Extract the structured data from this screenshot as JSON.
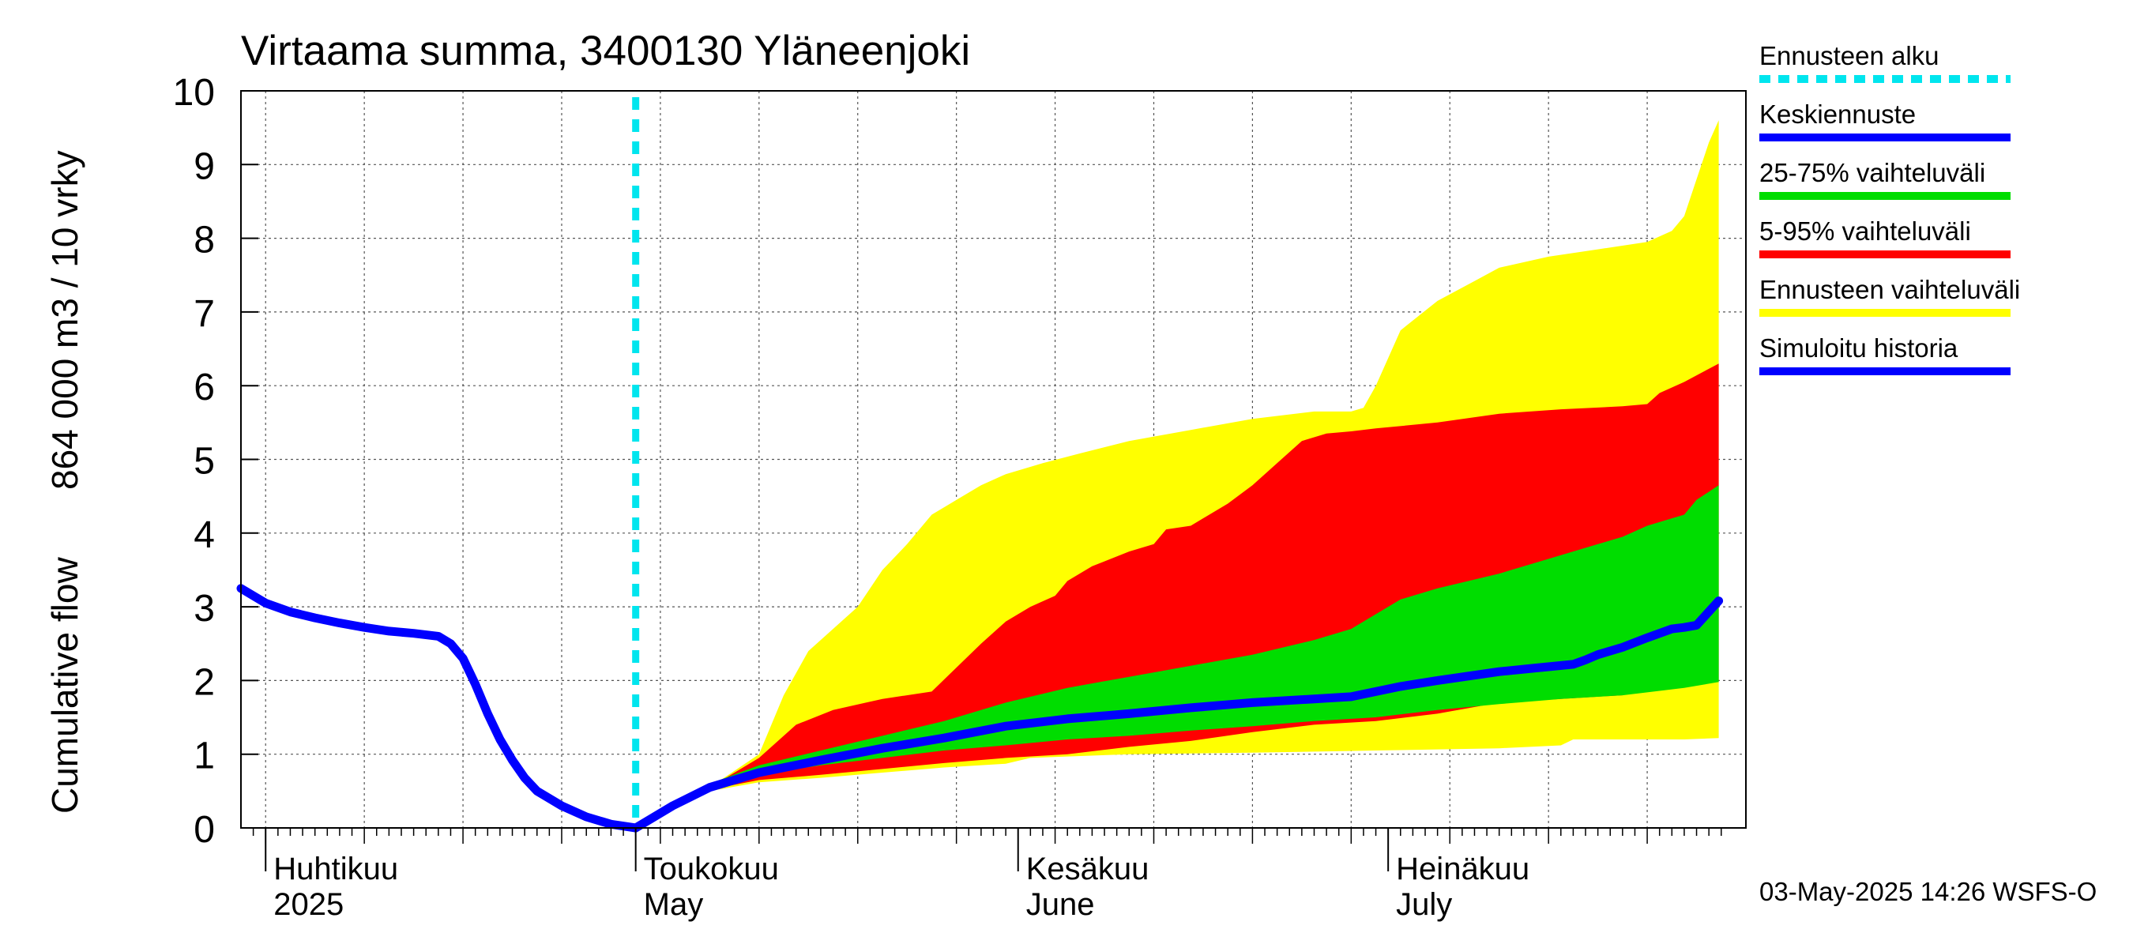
{
  "chart_data": {
    "type": "area",
    "title": "Virtaama summa, 3400130 Yläneenjoki",
    "ylabel_line1": "Cumulative flow",
    "ylabel_line2": "864 000 m3 / 10 vrky",
    "ylim": [
      0,
      10
    ],
    "yticks": [
      "0",
      "1",
      "2",
      "3",
      "4",
      "5",
      "6",
      "7",
      "8",
      "9",
      "10"
    ],
    "months": [
      {
        "fi": "Huhtikuu",
        "en": "2025",
        "day": 0
      },
      {
        "fi": "Toukokuu",
        "en": "May",
        "day": 30
      },
      {
        "fi": "Kesäkuu",
        "en": "June",
        "day": 61
      },
      {
        "fi": "Heinäkuu",
        "en": "July",
        "day": 91
      }
    ],
    "x_unit": "days since 2025-04-01",
    "xlim": [
      -2,
      120
    ],
    "grid": true,
    "forecast_start_day": 30,
    "legend": [
      {
        "label": "Ennusteen alku",
        "color": "#00e5ee",
        "style": "dashed"
      },
      {
        "label": "Keskiennuste",
        "color": "#0000ff",
        "style": "solid"
      },
      {
        "label": "25-75% vaihteluväli",
        "color": "#00dd00",
        "style": "solid"
      },
      {
        "label": "5-95% vaihteluväli",
        "color": "#ff0000",
        "style": "solid"
      },
      {
        "label": "Ennusteen vaihteluväli",
        "color": "#ffff00",
        "style": "solid"
      },
      {
        "label": "Simuloitu historia",
        "color": "#0000ff",
        "style": "solid"
      }
    ],
    "footer": "03-May-2025 14:26 WSFS-O",
    "series": [
      {
        "name": "Simuloitu historia",
        "color": "#0000ff",
        "x": [
          -2,
          0,
          2,
          4,
          6,
          8,
          10,
          12,
          14,
          15,
          16,
          17,
          18,
          19,
          20,
          21,
          22,
          24,
          26,
          28,
          30
        ],
        "y": [
          3.25,
          3.05,
          2.93,
          2.85,
          2.78,
          2.72,
          2.67,
          2.64,
          2.6,
          2.5,
          2.3,
          1.95,
          1.55,
          1.2,
          0.92,
          0.68,
          0.5,
          0.3,
          0.15,
          0.05,
          0.0
        ]
      },
      {
        "name": "Ennusteen vaihteluväli",
        "color": "#ffff00",
        "x_upper": [
          30,
          33,
          36,
          40,
          42,
          44,
          46,
          48,
          50,
          52,
          54,
          56,
          58,
          60,
          63,
          66,
          70,
          75,
          80,
          85,
          88,
          89,
          90,
          92,
          95,
          98,
          100,
          104,
          108,
          112,
          114,
          115,
          116,
          117,
          117.8
        ],
        "upper": [
          0.0,
          0.3,
          0.55,
          1.0,
          1.8,
          2.4,
          2.7,
          3.0,
          3.5,
          3.85,
          4.25,
          4.45,
          4.65,
          4.8,
          4.95,
          5.08,
          5.25,
          5.4,
          5.55,
          5.65,
          5.65,
          5.7,
          6.0,
          6.75,
          7.15,
          7.42,
          7.6,
          7.75,
          7.85,
          7.95,
          8.1,
          8.3,
          8.8,
          9.3,
          9.6
        ],
        "x_lower": [
          30,
          33,
          36,
          40,
          45,
          50,
          55,
          60,
          62,
          70,
          80,
          90,
          100,
          105,
          106,
          110,
          115,
          117.8
        ],
        "lower": [
          0.0,
          0.28,
          0.5,
          0.62,
          0.68,
          0.75,
          0.82,
          0.87,
          0.95,
          1.0,
          1.02,
          1.05,
          1.08,
          1.12,
          1.2,
          1.2,
          1.2,
          1.22
        ]
      },
      {
        "name": "5-95% vaihteluväli",
        "color": "#ff0000",
        "x_upper": [
          30,
          33,
          36,
          40,
          43,
          46,
          50,
          54,
          58,
          60,
          62,
          64,
          65,
          67,
          70,
          72,
          73,
          75,
          78,
          80,
          82,
          84,
          86,
          88,
          90,
          95,
          100,
          105,
          110,
          112,
          113,
          115,
          117.8
        ],
        "upper": [
          0.0,
          0.3,
          0.55,
          0.95,
          1.4,
          1.6,
          1.75,
          1.85,
          2.5,
          2.8,
          3.0,
          3.15,
          3.35,
          3.55,
          3.75,
          3.85,
          4.05,
          4.1,
          4.4,
          4.65,
          4.95,
          5.25,
          5.35,
          5.38,
          5.42,
          5.5,
          5.62,
          5.68,
          5.72,
          5.75,
          5.9,
          6.05,
          6.3
        ],
        "x_lower": [
          30,
          33,
          36,
          40,
          45,
          50,
          55,
          60,
          65,
          70,
          75,
          80,
          85,
          90,
          95,
          100,
          105,
          108,
          110,
          112,
          117.8
        ],
        "lower": [
          0.0,
          0.3,
          0.52,
          0.65,
          0.72,
          0.8,
          0.88,
          0.95,
          1.0,
          1.1,
          1.18,
          1.3,
          1.4,
          1.45,
          1.55,
          1.7,
          1.75,
          1.78,
          1.8,
          1.9,
          1.98
        ]
      },
      {
        "name": "25-75% vaihteluväli",
        "color": "#00dd00",
        "x_upper": [
          30,
          33,
          36,
          40,
          45,
          50,
          55,
          60,
          65,
          70,
          75,
          80,
          85,
          88,
          90,
          92,
          95,
          100,
          105,
          108,
          110,
          112,
          114,
          115,
          116,
          117.8
        ],
        "upper": [
          0.0,
          0.3,
          0.6,
          0.85,
          1.05,
          1.25,
          1.45,
          1.7,
          1.9,
          2.05,
          2.2,
          2.35,
          2.55,
          2.7,
          2.9,
          3.1,
          3.25,
          3.45,
          3.7,
          3.85,
          3.95,
          4.1,
          4.2,
          4.25,
          4.45,
          4.65
        ],
        "x_lower": [
          30,
          33,
          36,
          40,
          45,
          50,
          55,
          60,
          65,
          70,
          75,
          80,
          85,
          90,
          95,
          100,
          105,
          110,
          115,
          117.8
        ],
        "lower": [
          0.0,
          0.3,
          0.55,
          0.72,
          0.85,
          0.95,
          1.05,
          1.12,
          1.2,
          1.25,
          1.32,
          1.38,
          1.45,
          1.5,
          1.6,
          1.68,
          1.75,
          1.8,
          1.9,
          1.98
        ]
      },
      {
        "name": "Keskiennuste",
        "color": "#0000ff",
        "x": [
          30,
          33,
          36,
          40,
          45,
          50,
          55,
          60,
          65,
          70,
          75,
          80,
          85,
          88,
          90,
          92,
          95,
          100,
          103,
          106,
          107,
          108,
          110,
          112,
          114,
          115,
          116,
          117.8
        ],
        "y": [
          0.0,
          0.3,
          0.55,
          0.75,
          0.92,
          1.08,
          1.22,
          1.38,
          1.48,
          1.55,
          1.63,
          1.7,
          1.75,
          1.78,
          1.85,
          1.92,
          2.0,
          2.12,
          2.17,
          2.22,
          2.28,
          2.35,
          2.45,
          2.58,
          2.7,
          2.72,
          2.75,
          3.08
        ]
      }
    ]
  }
}
